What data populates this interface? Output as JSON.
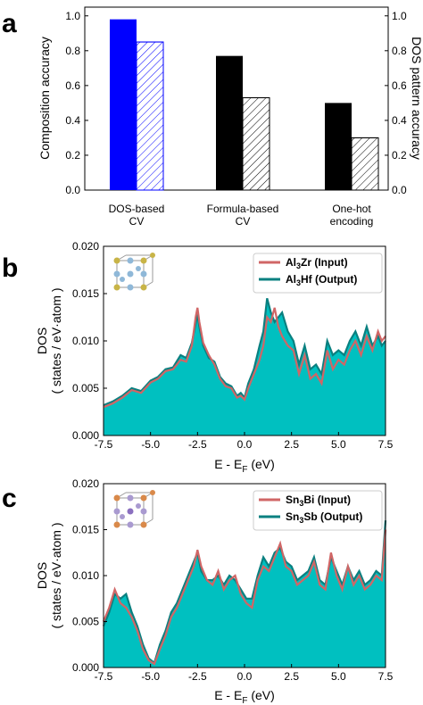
{
  "panels": [
    {
      "letter": "a"
    },
    {
      "letter": "b"
    },
    {
      "letter": "c"
    }
  ],
  "chart_data": [
    {
      "type": "bar",
      "panel": "a",
      "categories": [
        [
          "DOS-based",
          "CV"
        ],
        [
          "Formula-based",
          "CV"
        ],
        [
          "One-hot",
          "encoding"
        ]
      ],
      "series": [
        {
          "name": "Composition accuracy",
          "values": [
            0.98,
            0.77,
            0.5
          ],
          "colors": [
            "#0000ff",
            "#000000",
            "#000000"
          ],
          "axis": "left"
        },
        {
          "name": "DOS pattern accuracy",
          "values": [
            0.85,
            0.53,
            0.3
          ],
          "colors": [
            "#0000ff",
            "#000000",
            "#000000"
          ],
          "hatched": true,
          "axis": "right"
        }
      ],
      "ylabel": "Composition accuracy",
      "y2label": "DOS pattern accuracy",
      "ylim": [
        0,
        1.05
      ],
      "yticks": [
        "0.0",
        "0.2",
        "0.4",
        "0.6",
        "0.8",
        "1.0"
      ],
      "y2ticks": [
        "0.0",
        "0.2",
        "0.4",
        "0.6",
        "0.8",
        "1.0"
      ]
    },
    {
      "type": "line",
      "panel": "b",
      "xlabel": "E - E",
      "xlabel_sub": "F",
      "xlabel_unit": " (eV)",
      "ylabel": "DOS",
      "ylabel2": "( states / eV·atom )",
      "xlim": [
        -7.5,
        7.5
      ],
      "ylim": [
        0,
        0.02
      ],
      "xticks": [
        "-7.5",
        "-5.0",
        "-2.5",
        "0.0",
        "2.5",
        "5.0",
        "7.5"
      ],
      "yticks": [
        "0.000",
        "0.005",
        "0.010",
        "0.015",
        "0.020"
      ],
      "legend": [
        {
          "base": "Al",
          "sub": "3",
          "rest": "Zr (Input)",
          "color": "#d06666"
        },
        {
          "base": "Al",
          "sub": "3",
          "rest": "Hf (Output)",
          "color": "#0a8080"
        }
      ],
      "input_color": "#d06666",
      "output_color": "#0a8080",
      "fill_color": "#00c0c0",
      "x": [
        -7.5,
        -7.0,
        -6.5,
        -6.0,
        -5.5,
        -5.0,
        -4.6,
        -4.2,
        -3.8,
        -3.4,
        -3.1,
        -2.8,
        -2.6,
        -2.5,
        -2.4,
        -2.2,
        -1.9,
        -1.6,
        -1.3,
        -1.0,
        -0.7,
        -0.4,
        -0.2,
        0.0,
        0.2,
        0.5,
        0.8,
        1.0,
        1.2,
        1.4,
        1.6,
        1.8,
        2.0,
        2.3,
        2.6,
        2.9,
        3.2,
        3.5,
        3.8,
        4.1,
        4.4,
        4.7,
        5.0,
        5.3,
        5.6,
        5.9,
        6.2,
        6.5,
        6.8,
        7.1,
        7.3,
        7.5
      ],
      "input": [
        0.003,
        0.0034,
        0.004,
        0.0048,
        0.0045,
        0.0056,
        0.006,
        0.0068,
        0.007,
        0.008,
        0.0078,
        0.0095,
        0.0125,
        0.0135,
        0.012,
        0.0098,
        0.0085,
        0.0075,
        0.006,
        0.0052,
        0.005,
        0.004,
        0.0042,
        0.0038,
        0.005,
        0.0065,
        0.008,
        0.0095,
        0.0125,
        0.012,
        0.0135,
        0.0115,
        0.0105,
        0.0095,
        0.009,
        0.0065,
        0.0085,
        0.006,
        0.0065,
        0.0055,
        0.009,
        0.007,
        0.008,
        0.0075,
        0.009,
        0.01,
        0.0085,
        0.0105,
        0.009,
        0.011,
        0.01,
        0.0105
      ],
      "output": [
        0.0032,
        0.0036,
        0.0042,
        0.005,
        0.0047,
        0.0058,
        0.0062,
        0.007,
        0.0072,
        0.0085,
        0.0082,
        0.0098,
        0.0118,
        0.0128,
        0.0115,
        0.0095,
        0.0082,
        0.0078,
        0.0062,
        0.0055,
        0.0052,
        0.0042,
        0.0045,
        0.004,
        0.0055,
        0.007,
        0.0095,
        0.011,
        0.0145,
        0.013,
        0.012,
        0.0125,
        0.013,
        0.011,
        0.01,
        0.0075,
        0.0095,
        0.007,
        0.0075,
        0.0065,
        0.01,
        0.0085,
        0.009,
        0.0085,
        0.01,
        0.011,
        0.0095,
        0.0115,
        0.0095,
        0.0105,
        0.0095,
        0.01
      ]
    },
    {
      "type": "line",
      "panel": "c",
      "xlabel": "E - E",
      "xlabel_sub": "F",
      "xlabel_unit": " (eV)",
      "ylabel": "DOS",
      "ylabel2": "( states / eV·atom )",
      "xlim": [
        -7.5,
        7.5
      ],
      "ylim": [
        0,
        0.02
      ],
      "xticks": [
        "-7.5",
        "-5.0",
        "-2.5",
        "0.0",
        "2.5",
        "5.0",
        "7.5"
      ],
      "yticks": [
        "0.000",
        "0.005",
        "0.010",
        "0.015",
        "0.020"
      ],
      "legend": [
        {
          "base": "Sn",
          "sub": "3",
          "rest": "Bi (Input)",
          "color": "#d06666"
        },
        {
          "base": "Sn",
          "sub": "3",
          "rest": "Sb (Output)",
          "color": "#0a8080"
        }
      ],
      "input_color": "#d06666",
      "output_color": "#0a8080",
      "fill_color": "#00c0c0",
      "x": [
        -7.5,
        -7.2,
        -6.9,
        -6.6,
        -6.3,
        -6.0,
        -5.7,
        -5.4,
        -5.1,
        -4.8,
        -4.5,
        -4.2,
        -3.9,
        -3.6,
        -3.3,
        -3.0,
        -2.7,
        -2.5,
        -2.3,
        -2.0,
        -1.7,
        -1.4,
        -1.1,
        -0.8,
        -0.5,
        -0.2,
        0.1,
        0.4,
        0.7,
        1.0,
        1.3,
        1.6,
        1.9,
        2.2,
        2.5,
        2.8,
        3.1,
        3.4,
        3.7,
        4.0,
        4.3,
        4.6,
        4.9,
        5.2,
        5.5,
        5.8,
        6.1,
        6.4,
        6.7,
        7.0,
        7.3,
        7.5
      ],
      "input": [
        0.005,
        0.0065,
        0.0085,
        0.007,
        0.0065,
        0.0055,
        0.004,
        0.002,
        0.0008,
        0.0004,
        0.002,
        0.0035,
        0.0055,
        0.0065,
        0.008,
        0.0095,
        0.011,
        0.0128,
        0.011,
        0.0095,
        0.009,
        0.0105,
        0.0085,
        0.0095,
        0.01,
        0.008,
        0.007,
        0.0065,
        0.0095,
        0.011,
        0.0105,
        0.012,
        0.0135,
        0.011,
        0.0105,
        0.009,
        0.0095,
        0.01,
        0.0115,
        0.009,
        0.0085,
        0.0125,
        0.01,
        0.0085,
        0.011,
        0.009,
        0.01,
        0.0085,
        0.009,
        0.01,
        0.0095,
        0.015
      ],
      "output": [
        0.0045,
        0.006,
        0.008,
        0.0075,
        0.008,
        0.006,
        0.0045,
        0.0025,
        0.001,
        0.0005,
        0.0025,
        0.004,
        0.006,
        0.007,
        0.0085,
        0.01,
        0.0115,
        0.0125,
        0.0105,
        0.0095,
        0.0095,
        0.01,
        0.009,
        0.01,
        0.0095,
        0.0085,
        0.0075,
        0.0075,
        0.01,
        0.012,
        0.011,
        0.0125,
        0.013,
        0.0115,
        0.011,
        0.0095,
        0.01,
        0.0105,
        0.012,
        0.0095,
        0.009,
        0.012,
        0.0105,
        0.009,
        0.011,
        0.0095,
        0.0105,
        0.009,
        0.0095,
        0.0105,
        0.01,
        0.016
      ]
    }
  ]
}
